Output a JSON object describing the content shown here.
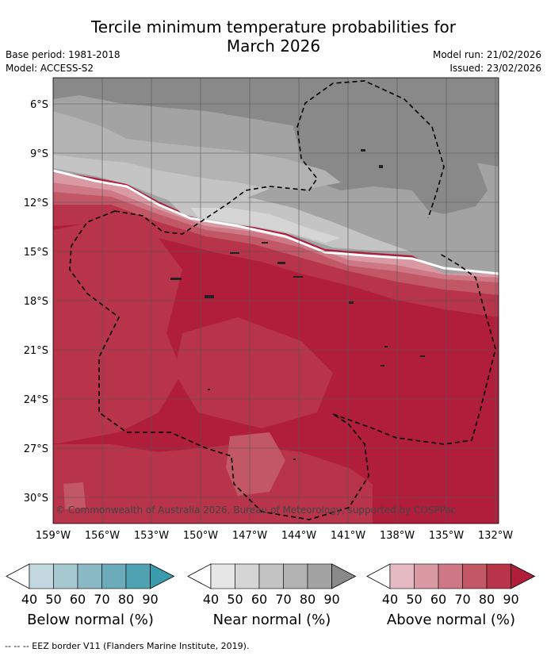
{
  "title_line1": "Tercile minimum temperature probabilities for",
  "title_line2": "March 2026",
  "meta": {
    "base_period": "Base period: 1981-2018",
    "model": "Model: ACCESS-S2",
    "model_run": "Model run: 21/02/2026",
    "issued": "Issued: 23/02/2026"
  },
  "map": {
    "lon_labels": [
      "159°W",
      "156°W",
      "153°W",
      "150°W",
      "147°W",
      "144°W",
      "141°W",
      "138°W",
      "135°W",
      "132°W"
    ],
    "lat_labels": [
      "6°S",
      "9°S",
      "12°S",
      "15°S",
      "18°S",
      "21°S",
      "24°S",
      "27°S",
      "30°S"
    ],
    "copyright": "© Commonwealth of Australia 2026, Bureau of Meteorology, supported by COSPPac"
  },
  "legends": [
    {
      "title": "Below normal (%)",
      "ticks": [
        "40",
        "50",
        "60",
        "70",
        "80",
        "90"
      ],
      "colors": [
        "#c2d8de",
        "#a6c8d1",
        "#89b9c5",
        "#6cabb9",
        "#4ea2b1",
        "#3b9bac"
      ]
    },
    {
      "title": "Near normal (%)",
      "ticks": [
        "40",
        "50",
        "60",
        "70",
        "80",
        "90"
      ],
      "colors": [
        "#e6e6e6",
        "#d5d5d5",
        "#c4c4c4",
        "#b3b3b3",
        "#a3a3a3",
        "#898989"
      ]
    },
    {
      "title": "Above normal (%)",
      "ticks": [
        "40",
        "50",
        "60",
        "70",
        "80",
        "90"
      ],
      "colors": [
        "#e4b9c1",
        "#d99aa3",
        "#cd7884",
        "#c25766",
        "#b7344b",
        "#b01e3c"
      ]
    }
  ],
  "footnote": "--  --  -- EEZ border V11 (Flanders Marine Institute, 2019)."
}
